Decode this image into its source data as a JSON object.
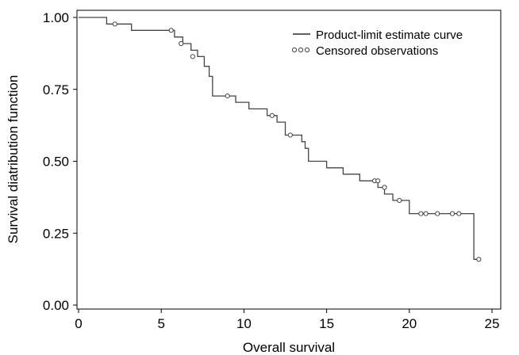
{
  "chart_data": {
    "type": "line",
    "xlabel": "Overall survival",
    "ylabel": "Survival diatribution function",
    "xlim": [
      0,
      25
    ],
    "ylim": [
      0,
      1
    ],
    "x_ticks": [
      0,
      5,
      10,
      15,
      20,
      25
    ],
    "x_tick_labels": [
      "0",
      "5",
      "10",
      "15",
      "20",
      "25"
    ],
    "y_ticks": [
      0,
      0.25,
      0.5,
      0.75,
      1.0
    ],
    "y_tick_labels": [
      "0.00",
      "0.25",
      "0.50",
      "0.75",
      "1.00"
    ],
    "grid": false,
    "legend": {
      "placement": "top-right",
      "entries": [
        {
          "label": "Product-limit estimate curve",
          "marker": "line"
        },
        {
          "label": "Censored observations",
          "marker": "circles"
        }
      ]
    },
    "series": [
      {
        "name": "Product-limit estimate curve",
        "step": true,
        "x": [
          0,
          1.7,
          3.2,
          5.8,
          6.3,
          6.8,
          7.2,
          7.6,
          7.9,
          8.1,
          9.5,
          10.3,
          11.4,
          12.0,
          12.5,
          13.5,
          13.7,
          13.9,
          15.0,
          16.0,
          17.0,
          18.1,
          18.5,
          19.0,
          20.0,
          23.9,
          24.2
        ],
        "y": [
          1.0,
          0.977,
          0.955,
          0.932,
          0.909,
          0.886,
          0.864,
          0.83,
          0.795,
          0.727,
          0.705,
          0.682,
          0.659,
          0.636,
          0.591,
          0.568,
          0.545,
          0.5,
          0.477,
          0.455,
          0.432,
          0.409,
          0.386,
          0.364,
          0.318,
          0.159,
          0.159
        ]
      }
    ],
    "censored": {
      "name": "Censored observations",
      "x": [
        2.2,
        5.6,
        6.2,
        6.9,
        9.0,
        11.7,
        12.8,
        17.9,
        18.1,
        18.5,
        19.4,
        20.7,
        21.0,
        21.7,
        22.6,
        23.0,
        24.2
      ],
      "y": [
        0.977,
        0.955,
        0.909,
        0.864,
        0.727,
        0.659,
        0.591,
        0.432,
        0.432,
        0.409,
        0.364,
        0.318,
        0.318,
        0.318,
        0.318,
        0.318,
        0.159
      ]
    }
  }
}
